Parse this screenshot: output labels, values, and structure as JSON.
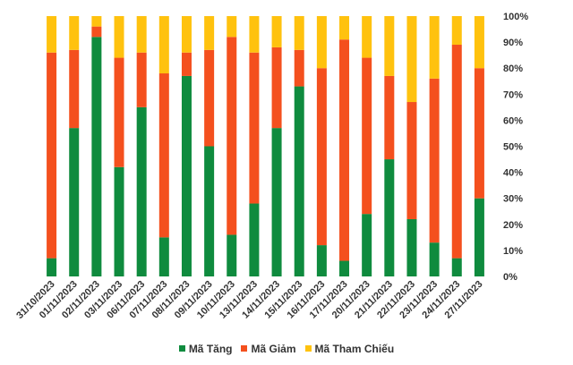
{
  "chart_data": {
    "type": "bar",
    "stacked": "percent",
    "categories": [
      "31/10/2023",
      "01/11/2023",
      "02/11/2023",
      "03/11/2023",
      "06/11/2023",
      "07/11/2023",
      "08/11/2023",
      "09/11/2023",
      "10/11/2023",
      "13/11/2023",
      "14/11/2023",
      "15/11/2023",
      "16/11/2023",
      "17/11/2023",
      "20/11/2023",
      "21/11/2023",
      "22/11/2023",
      "23/11/2023",
      "24/11/2023",
      "27/11/2023"
    ],
    "series": [
      {
        "name": "Mã Tăng",
        "color": "#0f8b3e",
        "values": [
          7,
          57,
          92,
          42,
          65,
          15,
          77,
          50,
          16,
          28,
          57,
          73,
          12,
          6,
          24,
          45,
          22,
          13,
          7,
          30
        ]
      },
      {
        "name": "Mã Giảm",
        "color": "#f4501e",
        "values": [
          79,
          30,
          4,
          42,
          21,
          63,
          9,
          37,
          76,
          58,
          31,
          14,
          68,
          85,
          60,
          32,
          45,
          63,
          82,
          50
        ]
      },
      {
        "name": "Mã Tham Chiếu",
        "color": "#ffc20e",
        "values": [
          14,
          13,
          4,
          16,
          14,
          22,
          14,
          13,
          8,
          14,
          12,
          13,
          20,
          9,
          16,
          23,
          33,
          24,
          11,
          20
        ]
      }
    ],
    "yaxis": {
      "ticks": [
        "0%",
        "10%",
        "20%",
        "30%",
        "40%",
        "50%",
        "60%",
        "70%",
        "80%",
        "90%",
        "100%"
      ],
      "ylim": [
        0,
        100
      ],
      "position": "right"
    },
    "grid": false,
    "legend": "bottom"
  }
}
